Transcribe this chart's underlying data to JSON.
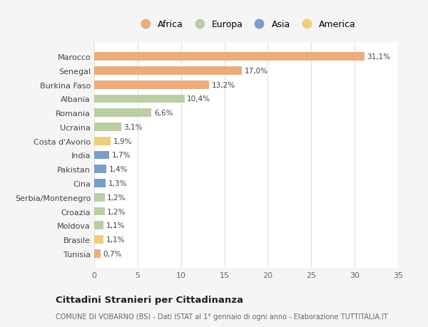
{
  "countries": [
    "Marocco",
    "Senegal",
    "Burkina Faso",
    "Albania",
    "Romania",
    "Ucraina",
    "Costa d'Avorio",
    "India",
    "Pakistan",
    "Cina",
    "Serbia/Montenegro",
    "Croazia",
    "Moldova",
    "Brasile",
    "Tunisia"
  ],
  "values": [
    31.1,
    17.0,
    13.2,
    10.4,
    6.6,
    3.1,
    1.9,
    1.7,
    1.4,
    1.3,
    1.2,
    1.2,
    1.1,
    1.1,
    0.7
  ],
  "labels": [
    "31,1%",
    "17,0%",
    "13,2%",
    "10,4%",
    "6,6%",
    "3,1%",
    "1,9%",
    "1,7%",
    "1,4%",
    "1,3%",
    "1,2%",
    "1,2%",
    "1,1%",
    "1,1%",
    "0,7%"
  ],
  "continents": [
    "Africa",
    "Africa",
    "Africa",
    "Europa",
    "Europa",
    "Europa",
    "America",
    "Asia",
    "Asia",
    "Asia",
    "Europa",
    "Europa",
    "Europa",
    "America",
    "Africa"
  ],
  "colors": {
    "Africa": "#EDAB7E",
    "Europa": "#BACDA4",
    "Asia": "#7A9EC7",
    "America": "#F0CE78"
  },
  "legend_entries": [
    "Africa",
    "Europa",
    "Asia",
    "America"
  ],
  "legend_colors": [
    "#EDAB7E",
    "#BACDA4",
    "#7A9EC7",
    "#F0CE78"
  ],
  "title": "Cittadini Stranieri per Cittadinanza",
  "subtitle": "COMUNE DI VOBARNO (BS) - Dati ISTAT al 1° gennaio di ogni anno - Elaborazione TUTTITALIA.IT",
  "xlim": [
    0,
    35
  ],
  "xticks": [
    0,
    5,
    10,
    15,
    20,
    25,
    30,
    35
  ],
  "background_color": "#f5f5f5",
  "bar_background": "#ffffff"
}
